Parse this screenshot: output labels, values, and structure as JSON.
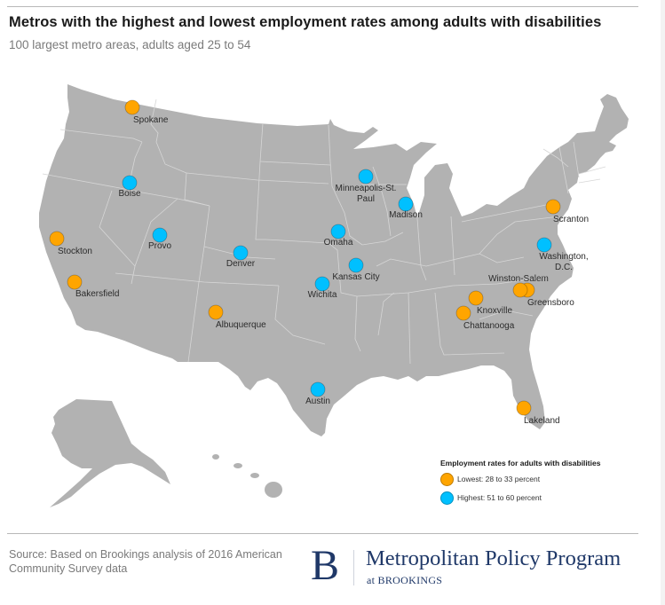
{
  "header": {
    "title": "Metros with the highest and lowest employment rates among adults with disabilities",
    "subtitle": "100 largest metro areas, adults aged 25 to 54"
  },
  "colors": {
    "land": "#b2b2b2",
    "state_border": "#d6d6d6",
    "lowest": "#ffa500",
    "highest": "#00c0ff",
    "brand_navy": "#1f3868"
  },
  "legend": {
    "title": "Employment rates for adults with disabilities",
    "items": [
      {
        "key": "lowest",
        "label": "Lowest: 28 to 33 percent"
      },
      {
        "key": "highest",
        "label": "Highest: 51 to 60 percent"
      }
    ]
  },
  "metros": [
    {
      "name": "Spokane",
      "group": "lowest"
    },
    {
      "name": "Boise",
      "group": "highest"
    },
    {
      "name": "Stockton",
      "group": "lowest"
    },
    {
      "name": "Provo",
      "group": "highest"
    },
    {
      "name": "Denver",
      "group": "highest"
    },
    {
      "name": "Bakersfield",
      "group": "lowest"
    },
    {
      "name": "Albuquerque",
      "group": "lowest"
    },
    {
      "name": "Minneapolis-St. Paul",
      "group": "highest"
    },
    {
      "name": "Madison",
      "group": "highest"
    },
    {
      "name": "Omaha",
      "group": "highest"
    },
    {
      "name": "Kansas City",
      "group": "highest"
    },
    {
      "name": "Wichita",
      "group": "highest"
    },
    {
      "name": "Austin",
      "group": "highest"
    },
    {
      "name": "Scranton",
      "group": "lowest"
    },
    {
      "name": "Washington, D.C.",
      "group": "highest"
    },
    {
      "name": "Winston-Salem",
      "group": "lowest"
    },
    {
      "name": "Greensboro",
      "group": "lowest"
    },
    {
      "name": "Knoxville",
      "group": "lowest"
    },
    {
      "name": "Chattanooga",
      "group": "lowest"
    },
    {
      "name": "Lakeland",
      "group": "lowest"
    }
  ],
  "footer": {
    "source": "Source: Based on Brookings analysis of 2016 American Community Survey data",
    "logo_letter": "B",
    "logo_main": "Metropolitan Policy Program",
    "logo_sub": "at BROOKINGS"
  }
}
